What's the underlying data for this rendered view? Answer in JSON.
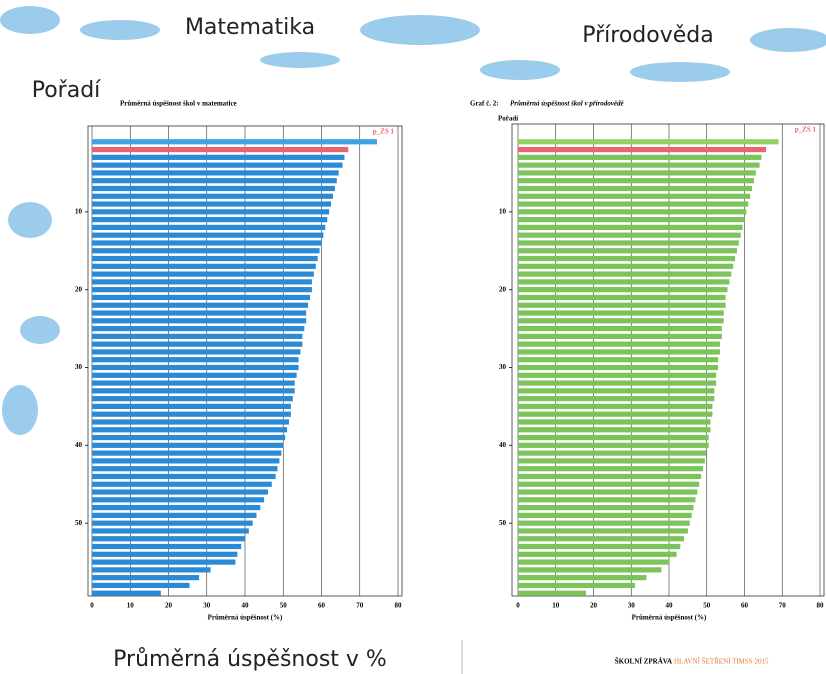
{
  "overlay": {
    "math_label": "Matematika",
    "science_label": "Přírodověda",
    "rank_label": "Pořadí",
    "axis_caption": "Průměrná úspěšnost v %"
  },
  "footer": {
    "brand": "ŠKOLNÍ ZPRÁVA",
    "series_name": "HLAVNÍ ŠETŘENÍ TIMSS 2015"
  },
  "chart_data": [
    {
      "type": "barh",
      "title": "Průměrná úspěšnost škol v matematice",
      "x_label": "Průměrná úspěšnost (%)",
      "legend": {
        "label": "p_ZS 1",
        "color": "#e8646f",
        "position": "top-right"
      },
      "xlim": [
        0,
        80
      ],
      "xticks": [
        0,
        10,
        20,
        30,
        40,
        50,
        60,
        70,
        80
      ],
      "ylim": [
        0,
        60
      ],
      "yticks": [
        10,
        20,
        30,
        40,
        50
      ],
      "grid": true,
      "values": [
        74.5,
        67,
        66,
        65.5,
        64.5,
        64,
        63.5,
        63,
        62.5,
        62,
        61.5,
        61,
        60.5,
        60,
        59.5,
        59,
        58.5,
        58,
        57.5,
        57.5,
        57,
        56.5,
        56,
        56,
        55.5,
        55,
        55,
        54.5,
        54,
        54,
        53.5,
        53,
        53,
        52.5,
        52,
        52,
        51.5,
        51,
        50.5,
        50,
        49.5,
        49,
        48.5,
        48,
        47,
        46,
        45,
        44,
        43,
        42,
        41,
        40,
        39,
        38,
        37.5,
        31,
        28,
        25.5,
        18
      ],
      "colors": [
        "#3ba3e6",
        "#e8646f",
        "#2b8ad6",
        "#2b8ad6",
        "#2b8ad6",
        "#2b8ad6",
        "#2b8ad6",
        "#2b8ad6",
        "#2b8ad6",
        "#2b8ad6",
        "#2b8ad6",
        "#2b8ad6",
        "#2b8ad6",
        "#2b8ad6",
        "#2b8ad6",
        "#2b8ad6",
        "#2b8ad6",
        "#2b8ad6",
        "#2b8ad6",
        "#2b8ad6",
        "#2b8ad6",
        "#2b8ad6",
        "#2b8ad6",
        "#2b8ad6",
        "#2b8ad6",
        "#2b8ad6",
        "#2b8ad6",
        "#2b8ad6",
        "#2b8ad6",
        "#2b8ad6",
        "#2b8ad6",
        "#2b8ad6",
        "#2b8ad6",
        "#2b8ad6",
        "#2b8ad6",
        "#2b8ad6",
        "#2b8ad6",
        "#2b8ad6",
        "#2b8ad6",
        "#2b8ad6",
        "#2b8ad6",
        "#2b8ad6",
        "#2b8ad6",
        "#2b8ad6",
        "#2b8ad6",
        "#2b8ad6",
        "#2b8ad6",
        "#2b8ad6",
        "#2b8ad6",
        "#2b8ad6",
        "#2b8ad6",
        "#2b8ad6",
        "#2b8ad6",
        "#2b8ad6",
        "#2b8ad6",
        "#2b8ad6",
        "#2b8ad6",
        "#2b8ad6",
        "#2b8ad6"
      ]
    },
    {
      "type": "barh",
      "figure_label": "Graf č. 2:",
      "title": "Průměrná úspěšnost škol v přírodovědě",
      "y_label": "Pořadí",
      "x_label": "Průměrná úspěšnost (%)",
      "legend": {
        "label": "p_ZS 1",
        "color": "#e8646f",
        "position": "top-right"
      },
      "xlim": [
        0,
        80
      ],
      "xticks": [
        0,
        10,
        20,
        30,
        40,
        50,
        60,
        70,
        80
      ],
      "ylim": [
        0,
        60
      ],
      "yticks": [
        10,
        20,
        30,
        40,
        50
      ],
      "grid": true,
      "values": [
        69,
        65.7,
        64.5,
        64,
        63,
        62.5,
        62,
        61.5,
        61,
        60.5,
        60,
        59.5,
        59,
        58.5,
        58,
        57.5,
        57,
        56.5,
        56,
        55.5,
        55,
        55,
        54.5,
        54.5,
        54,
        54,
        53.5,
        53.5,
        53,
        53,
        52.5,
        52.5,
        52,
        52,
        51.5,
        51.5,
        51,
        51,
        50.5,
        50.5,
        50,
        49.5,
        49,
        48.5,
        48,
        47.5,
        47,
        46.5,
        46,
        45.5,
        45,
        44,
        43,
        42,
        40,
        38,
        34,
        31,
        18
      ],
      "colors": [
        "#8fd162",
        "#e8646f",
        "#7cc35a",
        "#7cc35a",
        "#7cc35a",
        "#7cc35a",
        "#7cc35a",
        "#7cc35a",
        "#7cc35a",
        "#7cc35a",
        "#7cc35a",
        "#7cc35a",
        "#7cc35a",
        "#7cc35a",
        "#7cc35a",
        "#7cc35a",
        "#7cc35a",
        "#7cc35a",
        "#7cc35a",
        "#7cc35a",
        "#7cc35a",
        "#7cc35a",
        "#7cc35a",
        "#7cc35a",
        "#7cc35a",
        "#7cc35a",
        "#7cc35a",
        "#7cc35a",
        "#7cc35a",
        "#7cc35a",
        "#7cc35a",
        "#7cc35a",
        "#7cc35a",
        "#7cc35a",
        "#7cc35a",
        "#7cc35a",
        "#7cc35a",
        "#7cc35a",
        "#7cc35a",
        "#7cc35a",
        "#7cc35a",
        "#7cc35a",
        "#7cc35a",
        "#7cc35a",
        "#7cc35a",
        "#7cc35a",
        "#7cc35a",
        "#7cc35a",
        "#7cc35a",
        "#7cc35a",
        "#7cc35a",
        "#7cc35a",
        "#7cc35a",
        "#7cc35a",
        "#7cc35a",
        "#7cc35a",
        "#7cc35a",
        "#7cc35a",
        "#7cc35a"
      ]
    }
  ]
}
